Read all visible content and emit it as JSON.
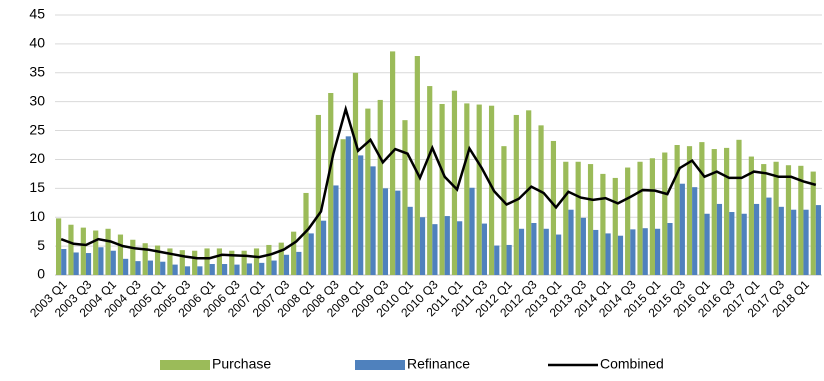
{
  "chart_data": {
    "type": "bar",
    "categories": [
      "2003 Q1",
      null,
      "2003 Q3",
      null,
      "2004 Q1",
      null,
      "2004 Q3",
      null,
      "2005 Q1",
      null,
      "2005 Q3",
      null,
      "2006 Q1",
      null,
      "2006 Q3",
      null,
      "2007 Q1",
      null,
      "2007 Q3",
      null,
      "2008 Q1",
      null,
      "2008 Q3",
      null,
      "2009 Q1",
      null,
      "2009 Q3",
      null,
      "2010 Q1",
      null,
      "2010 Q3",
      null,
      "2011 Q1",
      null,
      "2011 Q3",
      null,
      "2012 Q1",
      null,
      "2012 Q3",
      null,
      "2013 Q1",
      null,
      "2013 Q3",
      null,
      "2014 Q1",
      null,
      "2014 Q3",
      null,
      "2015 Q1",
      null,
      "2015 Q3",
      null,
      "2016 Q1",
      null,
      "2016 Q3",
      null,
      "2017 Q1",
      null,
      "2017 Q3",
      null,
      "2018 Q1",
      null
    ],
    "series": [
      {
        "name": "Purchase",
        "color": "#9bbb59",
        "type": "bar",
        "values": [
          9.8,
          8.7,
          8.2,
          7.7,
          8.0,
          7.0,
          6.1,
          5.5,
          5.1,
          4.6,
          4.3,
          4.2,
          4.6,
          4.6,
          4.2,
          4.2,
          4.6,
          5.2,
          5.6,
          7.5,
          14.2,
          27.7,
          31.5,
          23.5,
          35.0,
          28.8,
          30.3,
          38.7,
          26.8,
          37.9,
          32.7,
          29.6,
          31.9,
          29.7,
          29.5,
          29.3,
          22.3,
          27.7,
          28.5,
          25.9,
          23.2,
          19.6,
          19.6,
          19.2,
          17.5,
          16.8,
          18.6,
          19.6,
          20.2,
          21.2,
          22.5,
          22.3,
          23.0,
          21.8,
          22.0,
          23.4,
          20.5,
          19.2,
          19.6,
          19.0,
          18.9,
          17.9
        ]
      },
      {
        "name": "Refinance",
        "color": "#4f81bd",
        "type": "bar",
        "values": [
          4.5,
          3.9,
          3.8,
          4.8,
          4.2,
          2.8,
          2.4,
          2.5,
          2.3,
          1.8,
          1.5,
          1.5,
          1.9,
          1.9,
          1.8,
          2.0,
          2.1,
          2.5,
          3.5,
          4.0,
          7.2,
          9.4,
          15.5,
          24.0,
          20.7,
          18.8,
          15.0,
          14.6,
          11.8,
          10.0,
          8.8,
          10.2,
          9.3,
          15.1,
          8.9,
          5.1,
          5.2,
          8.0,
          9.0,
          8.0,
          7.0,
          11.3,
          9.9,
          7.8,
          7.2,
          6.8,
          7.9,
          8.1,
          8.0,
          9.0,
          15.8,
          15.2,
          10.6,
          12.3,
          10.9,
          10.6,
          12.3,
          13.4,
          11.8,
          11.3,
          11.3,
          12.1
        ]
      },
      {
        "name": "Combined",
        "color": "#000000",
        "type": "line",
        "values": [
          6.2,
          5.4,
          5.2,
          6.2,
          5.8,
          5.0,
          4.6,
          4.4,
          4.0,
          3.6,
          3.2,
          2.9,
          2.9,
          3.5,
          3.4,
          3.3,
          3.1,
          3.6,
          4.4,
          5.8,
          8.0,
          11.0,
          21.0,
          28.7,
          21.5,
          23.4,
          19.5,
          21.8,
          21.0,
          16.8,
          22.0,
          17.0,
          14.8,
          21.9,
          18.5,
          14.5,
          12.2,
          13.2,
          15.3,
          14.2,
          11.7,
          14.4,
          13.4,
          13.0,
          13.3,
          12.4,
          13.5,
          14.7,
          14.6,
          14.0,
          18.5,
          19.8,
          17.0,
          17.9,
          16.8,
          16.8,
          17.9,
          17.6,
          17.0,
          17.0,
          16.2,
          15.6
        ]
      }
    ],
    "ylim": [
      0,
      45
    ],
    "yticks": [
      0,
      5,
      10,
      15,
      20,
      25,
      30,
      35,
      40,
      45
    ],
    "grid": true,
    "legend": "bottom"
  }
}
